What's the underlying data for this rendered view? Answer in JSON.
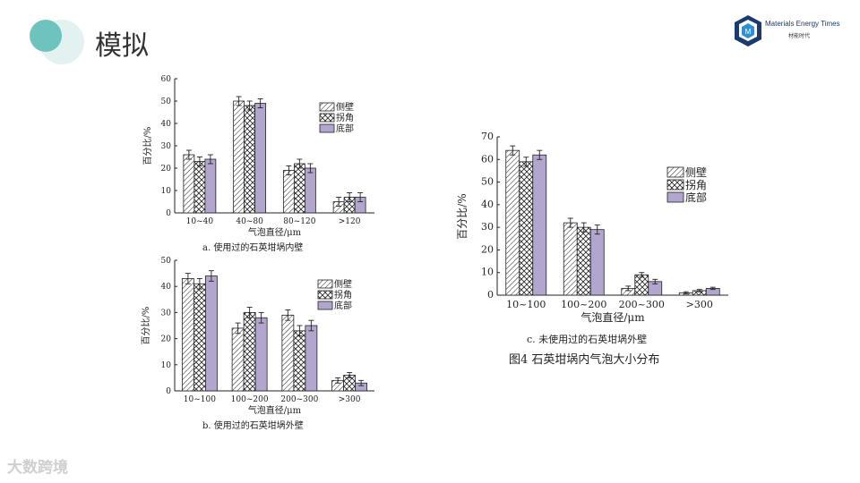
{
  "page": {
    "title": "模拟",
    "brand": {
      "name": "Materials Energy Times",
      "sub": "材能时代"
    },
    "watermark": "大数跨境",
    "figure_caption": "图4    石英坩埚内气泡大小分布",
    "colors": {
      "accent": "#6fc3bf",
      "accent_light": "#e3f1f0",
      "bottom_fill": "#b2a6cf",
      "bar_stroke": "#222222"
    }
  },
  "chart_data": [
    {
      "type": "bar",
      "caption": "a. 使用过的石英坩埚内壁",
      "xlabel": "气泡直径/μm",
      "ylabel": "百分比/%",
      "ylim": [
        0,
        60
      ],
      "yticks": [
        0,
        10,
        20,
        30,
        40,
        50,
        60
      ],
      "categories": [
        "10~40",
        "40~80",
        "80~120",
        ">120"
      ],
      "legend_position": "top-right",
      "series": [
        {
          "name": "侧壁",
          "pattern": "hatch",
          "values": [
            26,
            50,
            19,
            5
          ],
          "errors": [
            2,
            2,
            2,
            2
          ]
        },
        {
          "name": "拐角",
          "pattern": "cross",
          "values": [
            23,
            48,
            22,
            7
          ],
          "errors": [
            2,
            2,
            2,
            2
          ]
        },
        {
          "name": "底部",
          "pattern": "solid",
          "values": [
            24,
            49,
            20,
            7
          ],
          "errors": [
            2,
            2,
            2,
            2
          ]
        }
      ]
    },
    {
      "type": "bar",
      "caption": "b. 使用过的石英坩埚外壁",
      "xlabel": "气泡直径/μm",
      "ylabel": "百分比/%",
      "ylim": [
        0,
        50
      ],
      "yticks": [
        0,
        10,
        20,
        30,
        40,
        50
      ],
      "categories": [
        "10~100",
        "100~200",
        "200~300",
        ">300"
      ],
      "legend_position": "top-right",
      "series": [
        {
          "name": "侧壁",
          "pattern": "hatch",
          "values": [
            43,
            24,
            29,
            4
          ],
          "errors": [
            2,
            2,
            2,
            1
          ]
        },
        {
          "name": "拐角",
          "pattern": "cross",
          "values": [
            41,
            30,
            23,
            6
          ],
          "errors": [
            2,
            2,
            2,
            1
          ]
        },
        {
          "name": "底部",
          "pattern": "solid",
          "values": [
            44,
            28,
            25,
            3
          ],
          "errors": [
            2,
            2,
            2,
            1
          ]
        }
      ]
    },
    {
      "type": "bar",
      "caption": "c. 未使用过的石英坩埚外壁",
      "xlabel": "气泡直径/μm",
      "ylabel": "百分比/%",
      "ylim": [
        0,
        70
      ],
      "yticks": [
        0,
        10,
        20,
        30,
        40,
        50,
        60,
        70
      ],
      "categories": [
        "10~100",
        "100~200",
        "200~300",
        ">300"
      ],
      "legend_position": "top-right",
      "series": [
        {
          "name": "侧壁",
          "pattern": "hatch",
          "values": [
            64,
            32,
            3,
            1
          ],
          "errors": [
            2,
            2,
            1,
            0.5
          ]
        },
        {
          "name": "拐角",
          "pattern": "cross",
          "values": [
            59,
            30,
            9,
            2
          ],
          "errors": [
            2,
            2,
            1,
            0.5
          ]
        },
        {
          "name": "底部",
          "pattern": "solid",
          "values": [
            62,
            29,
            6,
            3
          ],
          "errors": [
            2,
            2,
            1,
            0.5
          ]
        }
      ]
    }
  ]
}
